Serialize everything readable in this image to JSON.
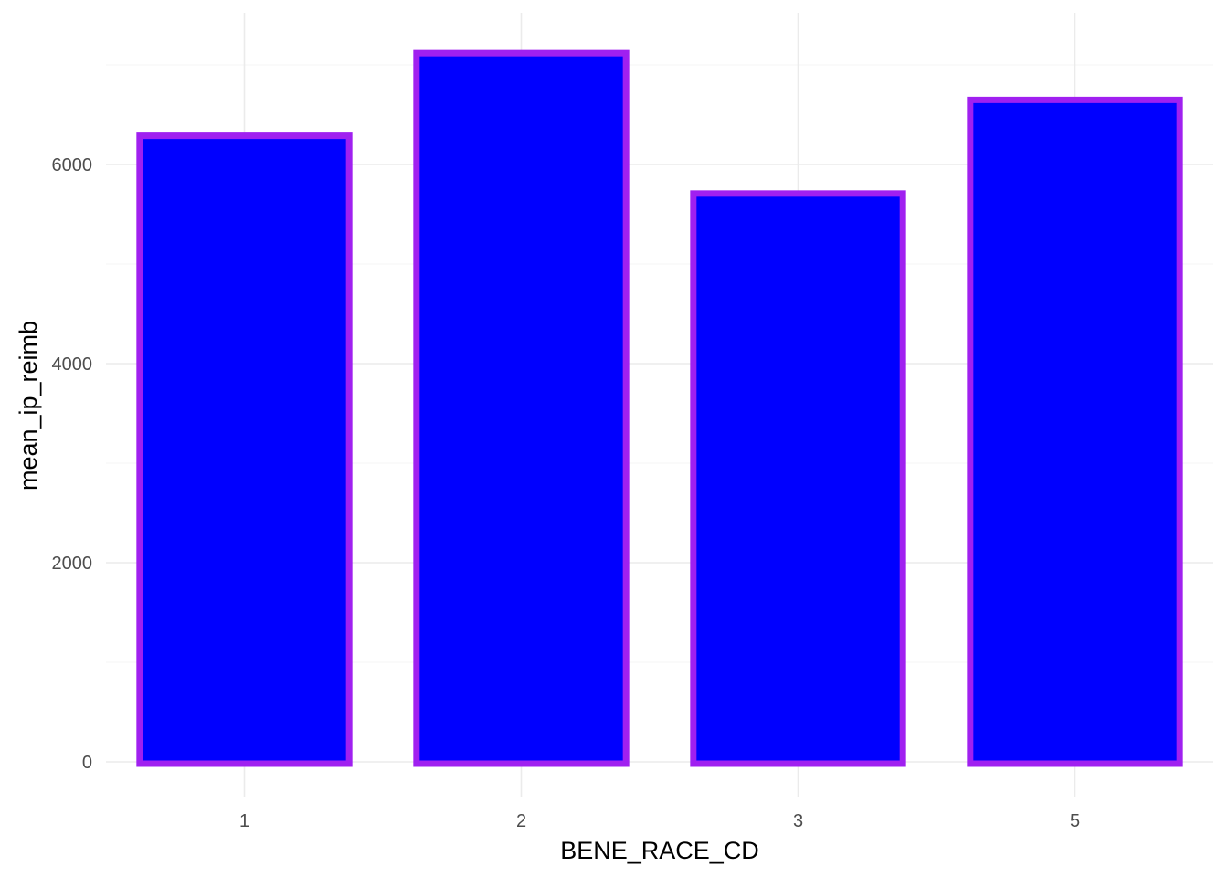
{
  "chart_data": {
    "type": "bar",
    "categories": [
      "1",
      "2",
      "3",
      "5"
    ],
    "values": [
      6320,
      7150,
      5740,
      6680
    ],
    "xlabel": "BENE_RACE_CD",
    "ylabel": "mean_ip_reimb",
    "ylim": [
      0,
      7000
    ],
    "yticks": [
      0,
      2000,
      4000,
      6000
    ],
    "grid": true,
    "legend": "none",
    "colors": {
      "fill": "#0000ff",
      "outline": "#a020f0",
      "grid_major": "#ebebeb",
      "grid_minor": "#f4f4f4",
      "tick_text": "#4d4d4d",
      "title_text": "#000000"
    }
  }
}
